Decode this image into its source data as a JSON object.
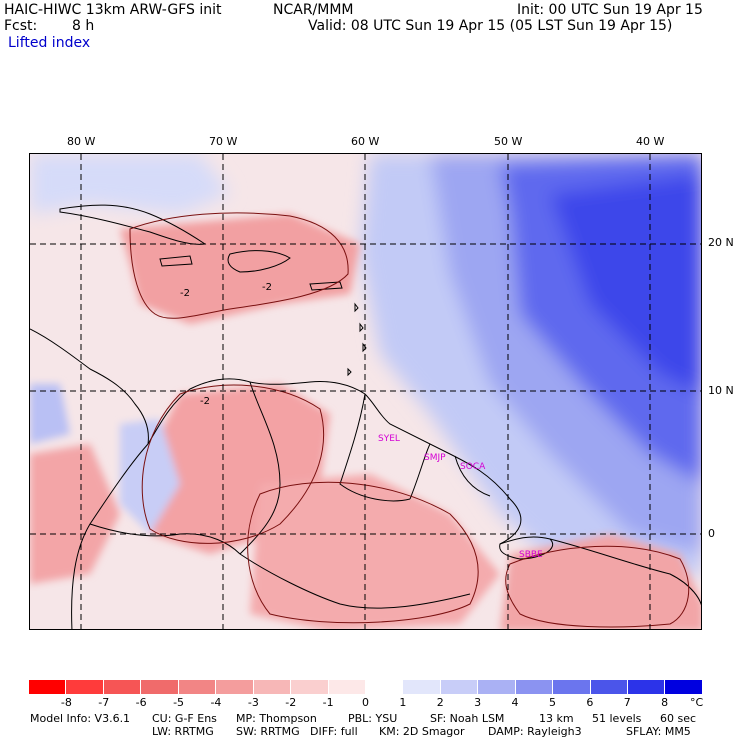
{
  "header": {
    "title": "HAIC-HIWC 13km ARW-GFS init",
    "org": "NCAR/MMM",
    "init": "Init: 00 UTC Sun 19 Apr 15",
    "fcst_label": "Fcst:",
    "fcst_value": "8 h",
    "valid": "Valid: 08 UTC Sun 19 Apr 15 (05 LST Sun 19 Apr 15)",
    "field": "Lifted index"
  },
  "map": {
    "lon_labels": [
      "80 W",
      "70 W",
      "60 W",
      "50 W",
      "40 W"
    ],
    "lat_labels": [
      "20 N",
      "10 N",
      "0"
    ],
    "contour_labels": [
      "-2",
      "-2",
      "-2"
    ],
    "stations": [
      "SYEL",
      "SMJP",
      "SOCA",
      "SBBE"
    ],
    "colors": {
      "ocean_east": "#4a55f0",
      "ocean_mid": "#b9c3f7",
      "land_positive": "#f3a8a8",
      "neutral": "#f7eaea"
    }
  },
  "colorbar": {
    "ticks": [
      "-8",
      "-7",
      "-6",
      "-5",
      "-4",
      "-3",
      "-2",
      "-1",
      "0",
      "1",
      "2",
      "3",
      "4",
      "5",
      "6",
      "7",
      "8"
    ],
    "unit": "°C",
    "colors": [
      "#ff0000",
      "#ff3b3b",
      "#f65555",
      "#f06b6b",
      "#f28585",
      "#f49d9d",
      "#f7b7b7",
      "#facfcf",
      "#fde8e8",
      "#ffffff",
      "#e2e6fb",
      "#c8cdf8",
      "#aab1f4",
      "#8b93f1",
      "#6b75ee",
      "#4b55ea",
      "#2c33e9",
      "#0000e0"
    ]
  },
  "footer": {
    "line1": [
      {
        "text": "Model Info: V3.6.1"
      },
      {
        "text": "CU: G-F Ens"
      },
      {
        "text": "MP: Thompson"
      },
      {
        "text": "PBL: YSU"
      },
      {
        "text": "SF: Noah LSM"
      },
      {
        "text": "13 km"
      },
      {
        "text": "51 levels"
      },
      {
        "text": "60 sec"
      }
    ],
    "line2": [
      {
        "text": "LW: RRTMG"
      },
      {
        "text": "SW: RRTMG"
      },
      {
        "text": "DIFF: full"
      },
      {
        "text": "KM: 2D Smagor"
      },
      {
        "text": "DAMP: Rayleigh3"
      },
      {
        "text": "SFLAY: MM5"
      }
    ]
  }
}
